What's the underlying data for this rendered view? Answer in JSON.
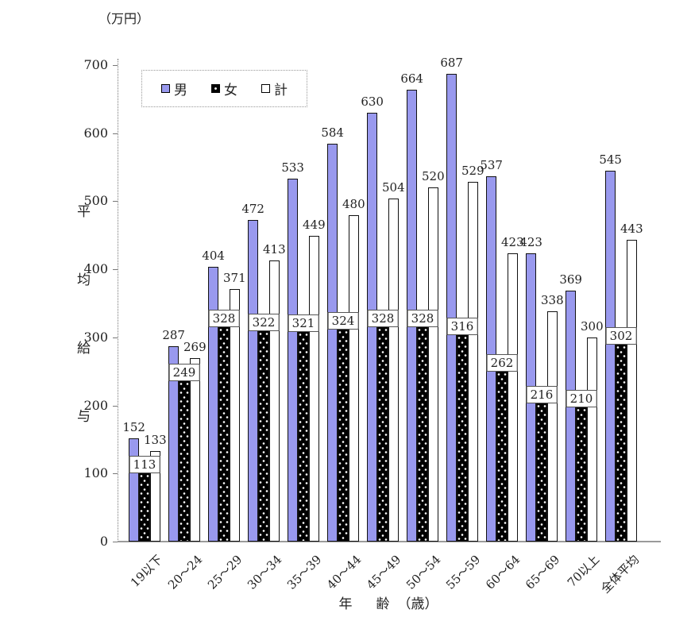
{
  "unit_label": "（万円）",
  "colors": {
    "male_bar": "#9999EE",
    "female_bar": "#000000",
    "total_bar": "#FFFFFF",
    "bar_border": "#111111",
    "axis": "#888888",
    "text": "#222222"
  },
  "y_axis": {
    "title_chars": [
      "平",
      "均",
      "給",
      "与"
    ],
    "ticks": [
      0,
      100,
      200,
      300,
      400,
      500,
      600,
      700
    ],
    "max": 700
  },
  "x_axis": {
    "title_parts": [
      "年",
      "齢",
      "（歳）"
    ]
  },
  "legend": {
    "items": [
      "男",
      "女",
      "計"
    ]
  },
  "chart_data": {
    "type": "bar",
    "title": "",
    "unit": "万円",
    "categories": [
      "19以下",
      "20〜24",
      "25〜29",
      "30〜34",
      "35〜39",
      "40〜44",
      "45〜49",
      "50〜54",
      "55〜59",
      "60〜64",
      "65〜69",
      "70以上",
      "全体平均"
    ],
    "series": [
      {
        "name": "男",
        "values": [
          152,
          287,
          404,
          472,
          533,
          584,
          630,
          664,
          687,
          537,
          423,
          369,
          545
        ]
      },
      {
        "name": "女",
        "values": [
          113,
          249,
          328,
          322,
          321,
          324,
          328,
          328,
          316,
          262,
          216,
          210,
          302
        ]
      },
      {
        "name": "計",
        "values": [
          133,
          269,
          371,
          413,
          449,
          480,
          504,
          520,
          529,
          423,
          338,
          300,
          443
        ]
      }
    ],
    "ylabel": "平均給与",
    "xlabel": "年齢（歳）",
    "ylim": [
      0,
      700
    ],
    "grid": false,
    "legend_position": "top-left-inside",
    "data_labels": "all-bars"
  }
}
